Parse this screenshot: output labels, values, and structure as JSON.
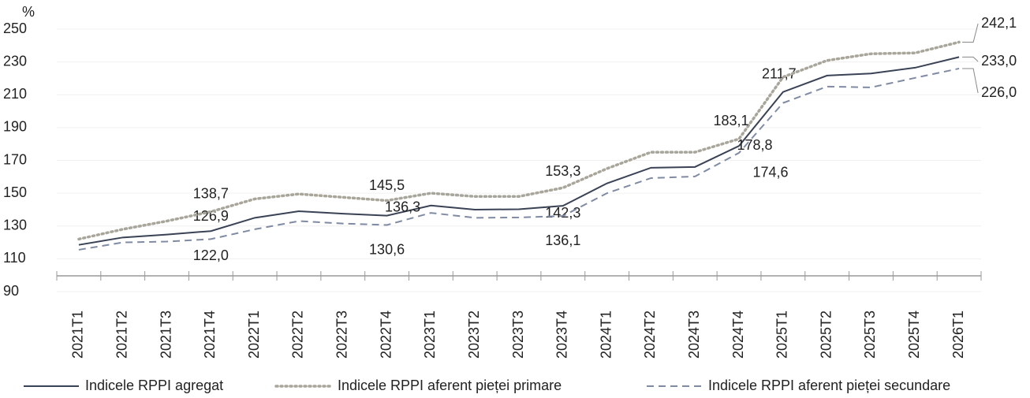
{
  "chart_data": {
    "type": "line",
    "y_label": "%",
    "categories": [
      "2021T1",
      "2021T2",
      "2021T3",
      "2021T4",
      "2022T1",
      "2022T2",
      "2022T3",
      "2022T4",
      "2023T1",
      "2023T2",
      "2023T3",
      "2023T4",
      "2024T1",
      "2024T2",
      "2024T3",
      "2024T4",
      "2025T1",
      "2025T2",
      "2025T3",
      "2025T4",
      "2026T1"
    ],
    "series": [
      {
        "name": "Indicele RPPI agregat",
        "color": "#3a4255",
        "dash": "solid",
        "values": [
          118.5,
          123,
          124.8,
          126.9,
          135,
          139,
          137.5,
          136.3,
          142.5,
          140,
          140.2,
          142.3,
          156,
          165.5,
          166,
          178.8,
          211.7,
          221.7,
          223,
          226.5,
          233.0
        ],
        "value_labels": [
          null,
          null,
          null,
          "126,9",
          null,
          null,
          null,
          "136,3",
          null,
          null,
          null,
          "142,3",
          null,
          null,
          null,
          "178,8",
          "211,7",
          null,
          null,
          null,
          "233,0"
        ]
      },
      {
        "name": "Indicele RPPI aferent pieței primare",
        "color": "#a8a59b",
        "dash": "dotted",
        "values": [
          122,
          128,
          133,
          138.7,
          146.5,
          149.5,
          147.5,
          145.5,
          150,
          148,
          148,
          153.3,
          165,
          175,
          175,
          183.1,
          220.8,
          230.9,
          235,
          235.5,
          242.1
        ],
        "value_labels": [
          null,
          null,
          null,
          "138,7",
          null,
          null,
          null,
          "145,5",
          null,
          null,
          null,
          "153,3",
          null,
          null,
          null,
          "183,1",
          null,
          null,
          null,
          null,
          "242,1"
        ]
      },
      {
        "name": "Indicele RPPI aferent pieței secundare",
        "color": "#7f8aa3",
        "dash": "dashed",
        "values": [
          115.5,
          120,
          120.5,
          122.0,
          128,
          133,
          131.5,
          130.6,
          138,
          135,
          135.2,
          136.1,
          150,
          159.2,
          160.2,
          174.6,
          205,
          215,
          214.5,
          220.3,
          226.0
        ],
        "value_labels": [
          null,
          null,
          null,
          "122,0",
          null,
          null,
          null,
          "130,6",
          null,
          null,
          null,
          "136,1",
          null,
          null,
          null,
          "174,6",
          null,
          null,
          null,
          null,
          "226,0"
        ]
      }
    ],
    "ylim": [
      90,
      250
    ],
    "yticks": [
      90,
      110,
      130,
      150,
      170,
      190,
      210,
      230,
      250
    ],
    "grid": true
  }
}
